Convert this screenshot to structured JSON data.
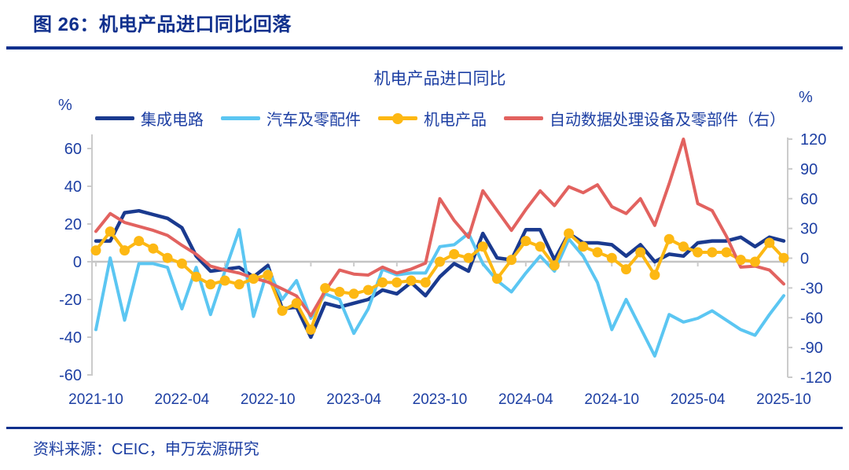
{
  "page": {
    "header_title": "图 26：机电产品进口同比回落",
    "source": "资料来源：CEIC，申万宏源研究"
  },
  "colors": {
    "text_navy": "#1d3fa3",
    "rule_navy": "#10308d",
    "axis_gray": "#cbcbcb",
    "zero_line_gray": "#c4c4c4"
  },
  "chart_data": {
    "type": "line",
    "title": "机电产品进口同比",
    "legend_position": "top",
    "grid": "off",
    "left_axis": {
      "unit": "%",
      "range": [
        -60,
        60
      ],
      "ticks": [
        60,
        40,
        20,
        0,
        -20,
        -40,
        -60
      ]
    },
    "right_axis": {
      "unit": "%",
      "range": [
        -120,
        120
      ],
      "ticks": [
        120,
        90,
        60,
        30,
        0,
        -30,
        -60,
        -90,
        -120
      ]
    },
    "x_tick_labels": [
      "2021-10",
      "2022-04",
      "2022-10",
      "2023-04",
      "2023-10",
      "2024-04",
      "2024-10",
      "2025-04",
      "2025-10"
    ],
    "x": [
      "2021-10",
      "2021-11",
      "2021-12",
      "2022-01",
      "2022-02",
      "2022-03",
      "2022-04",
      "2022-05",
      "2022-06",
      "2022-07",
      "2022-08",
      "2022-09",
      "2022-10",
      "2022-11",
      "2022-12",
      "2023-01",
      "2023-02",
      "2023-03",
      "2023-04",
      "2023-05",
      "2023-06",
      "2023-07",
      "2023-08",
      "2023-09",
      "2023-10",
      "2023-11",
      "2023-12",
      "2024-01",
      "2024-02",
      "2024-03",
      "2024-04",
      "2024-05",
      "2024-06",
      "2024-07",
      "2024-08",
      "2024-09",
      "2024-10",
      "2024-11",
      "2024-12",
      "2025-01",
      "2025-02",
      "2025-03",
      "2025-04",
      "2025-05",
      "2025-06",
      "2025-07",
      "2025-08",
      "2025-09",
      "2025-10"
    ],
    "series": [
      {
        "id": "ic",
        "name": "集成电路",
        "axis": "left",
        "color": "#1a3a8f",
        "marker": false,
        "values": [
          11,
          11,
          26,
          27,
          25,
          23,
          18,
          3,
          -5,
          -4,
          -3,
          -8,
          -2,
          -25,
          -24,
          -40,
          -22,
          -24,
          -22,
          -20,
          -15,
          -17,
          -11,
          -18,
          -8,
          -1,
          -5,
          15,
          2,
          1,
          17,
          17,
          1,
          15,
          10,
          10,
          9,
          3,
          9,
          0,
          4,
          3,
          10,
          11,
          11,
          13,
          8,
          13,
          11
        ]
      },
      {
        "id": "auto-parts",
        "name": "汽车及零配件",
        "axis": "left",
        "color": "#5bc6f2",
        "marker": false,
        "values": [
          -36,
          2,
          -31,
          -1,
          -1,
          -3,
          -25,
          -3,
          -28,
          -5,
          17,
          -29,
          -4,
          -20,
          -10,
          -30,
          -17,
          -20,
          -38,
          -25,
          -4,
          -7,
          -6,
          -6,
          8,
          9,
          15,
          -1,
          -10,
          -16,
          -6,
          3,
          -5,
          12,
          3,
          -11,
          -36,
          -20,
          -35,
          -50,
          -28,
          -32,
          -30,
          -26,
          -31,
          -36,
          -39,
          -28,
          -18
        ]
      },
      {
        "id": "mech-products",
        "name": "机电产品",
        "axis": "left",
        "color": "#fdb813",
        "marker": true,
        "values": [
          6,
          16,
          6,
          11,
          7,
          2,
          -1,
          -8,
          -12,
          -10,
          -12,
          -9,
          -7,
          -26,
          -22,
          -36,
          -14,
          -16,
          -17,
          -15,
          -11,
          -11,
          -10,
          -11,
          0,
          4,
          2,
          8,
          -9,
          1,
          11,
          8,
          -2,
          15,
          8,
          5,
          2,
          -4,
          5,
          -7,
          12,
          8,
          5,
          5,
          5,
          1,
          0,
          10,
          2
        ]
      },
      {
        "id": "adp-equipment",
        "name": "自动数据处理设备及零部件（右）",
        "axis": "right",
        "color": "#e2625f",
        "marker": false,
        "values": [
          27,
          45,
          36,
          32,
          28,
          23,
          13,
          4,
          -8,
          -12,
          -15,
          -20,
          -24,
          -31,
          -38,
          -58,
          -33,
          -12,
          -16,
          -17,
          -9,
          -15,
          -11,
          -5,
          60,
          38,
          21,
          68,
          48,
          28,
          49,
          68,
          53,
          72,
          66,
          74,
          52,
          45,
          60,
          33,
          75,
          120,
          55,
          48,
          22,
          -9,
          -8,
          -12,
          -26
        ]
      }
    ]
  }
}
